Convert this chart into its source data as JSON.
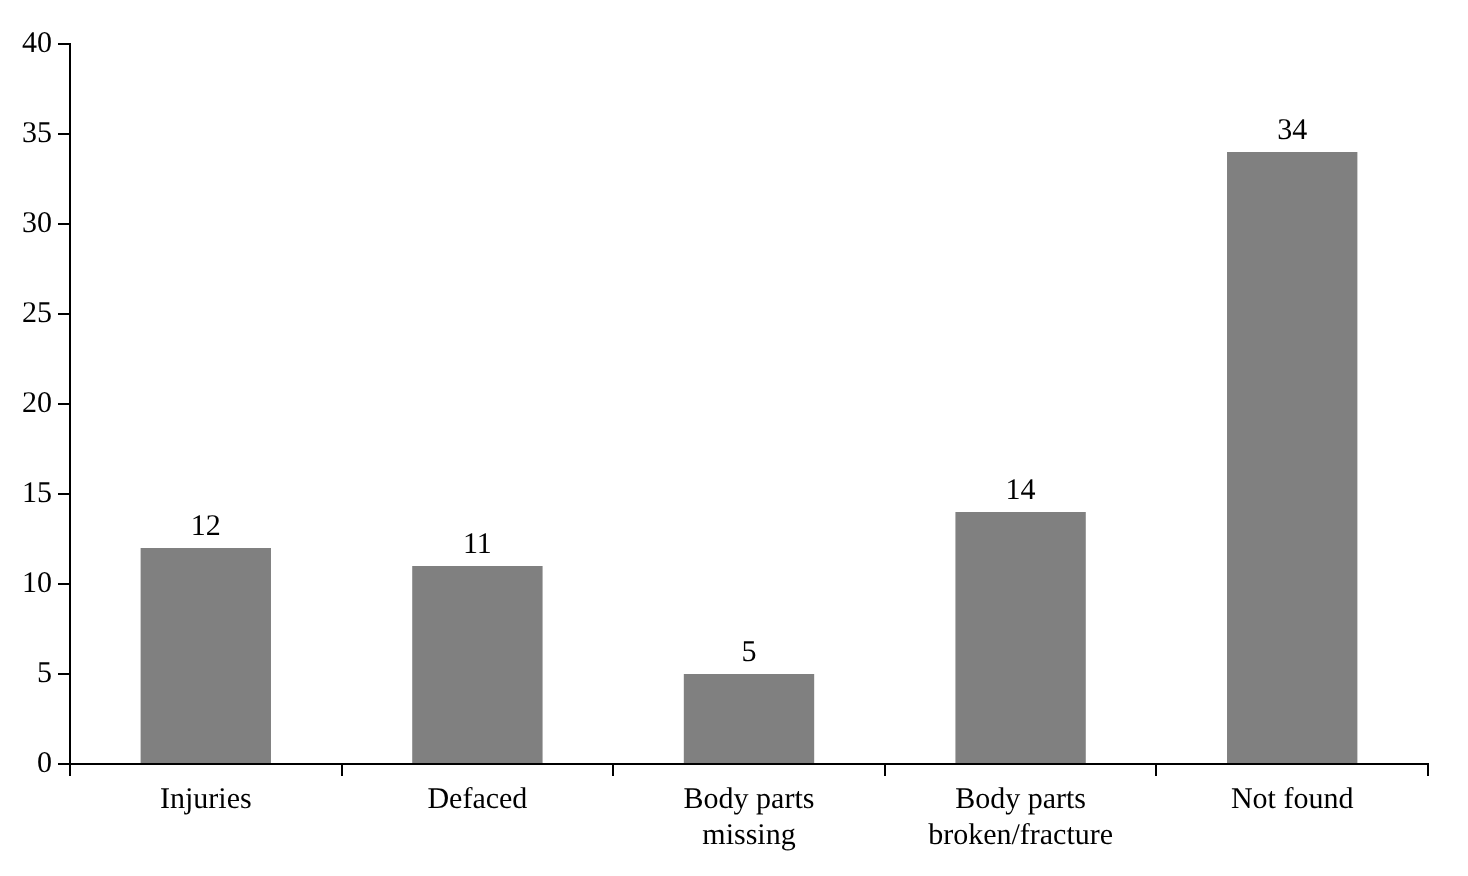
{
  "chart_data": {
    "type": "bar",
    "categories": [
      "Injuries",
      "Defaced",
      "Body parts missing",
      "Body parts broken/fracture",
      "Not found"
    ],
    "values": [
      12,
      11,
      5,
      14,
      34
    ],
    "color": "#808080",
    "ylim": [
      0,
      40
    ],
    "yticks": [
      0,
      5,
      10,
      15,
      20,
      25,
      30,
      35,
      40
    ],
    "grid": false,
    "legend": false,
    "data_labels": true
  }
}
